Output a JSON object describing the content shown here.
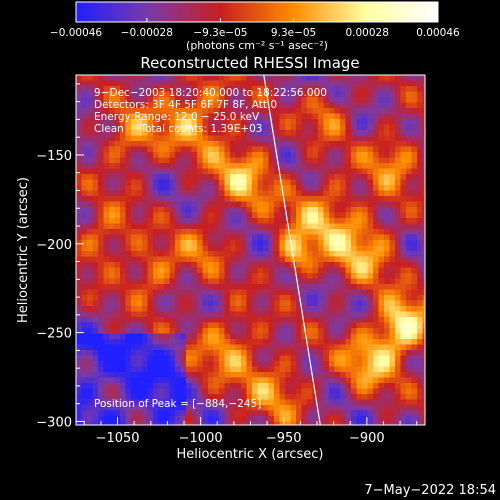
{
  "chart_data": {
    "type": "heatmap",
    "title": "Reconstructed RHESSI Image",
    "xlabel": "Heliocentric X (arcsec)",
    "ylabel": "Heliocentric Y (arcsec)",
    "xlim": [
      -1075,
      -865
    ],
    "ylim": [
      -302,
      -105
    ],
    "x_ticks": [
      -1050,
      -1000,
      -950,
      -900
    ],
    "x_tick_labels": [
      "−1050",
      "−1000",
      "−950",
      "−900"
    ],
    "y_ticks": [
      -150,
      -200,
      -250,
      -300
    ],
    "y_tick_labels": [
      "−150",
      "−200",
      "−250",
      "−300"
    ],
    "colorbar": {
      "ticks": [
        -0.00046,
        -0.00028,
        -9.3e-05,
        9.3e-05,
        0.00028,
        0.00046
      ],
      "tick_labels": [
        "−0.00046",
        "−0.00028",
        "−9.3e−05",
        "9.3e−05",
        "0.00028",
        "0.00046"
      ],
      "units": "(photons cm⁻² s⁻¹ asec⁻²)",
      "range": [
        -0.00046,
        0.00046
      ]
    },
    "info_lines": [
      "9−Dec−2003 18:20:40.000 to 18:22:56.000",
      "Detectors: 3F 4F 5F 6F 7F 8F, Att 0",
      "Energy Range: 12.0 − 25.0 keV",
      "Clean     Total counts: 1.39E+03"
    ],
    "peak_label": "Position of Peak = [−884,−245]",
    "peak_position": [
      -884,
      -245
    ],
    "limb_line": {
      "points": [
        [
          -962,
          -105
        ],
        [
          -928,
          -302
        ]
      ]
    },
    "grid": false,
    "colormap": [
      "#2020ff",
      "#7a3aa8",
      "#c82020",
      "#ff8c00",
      "#ffffa0",
      "#ffffff"
    ]
  },
  "footer": {
    "timestamp": "7−May−2022 18:54"
  }
}
